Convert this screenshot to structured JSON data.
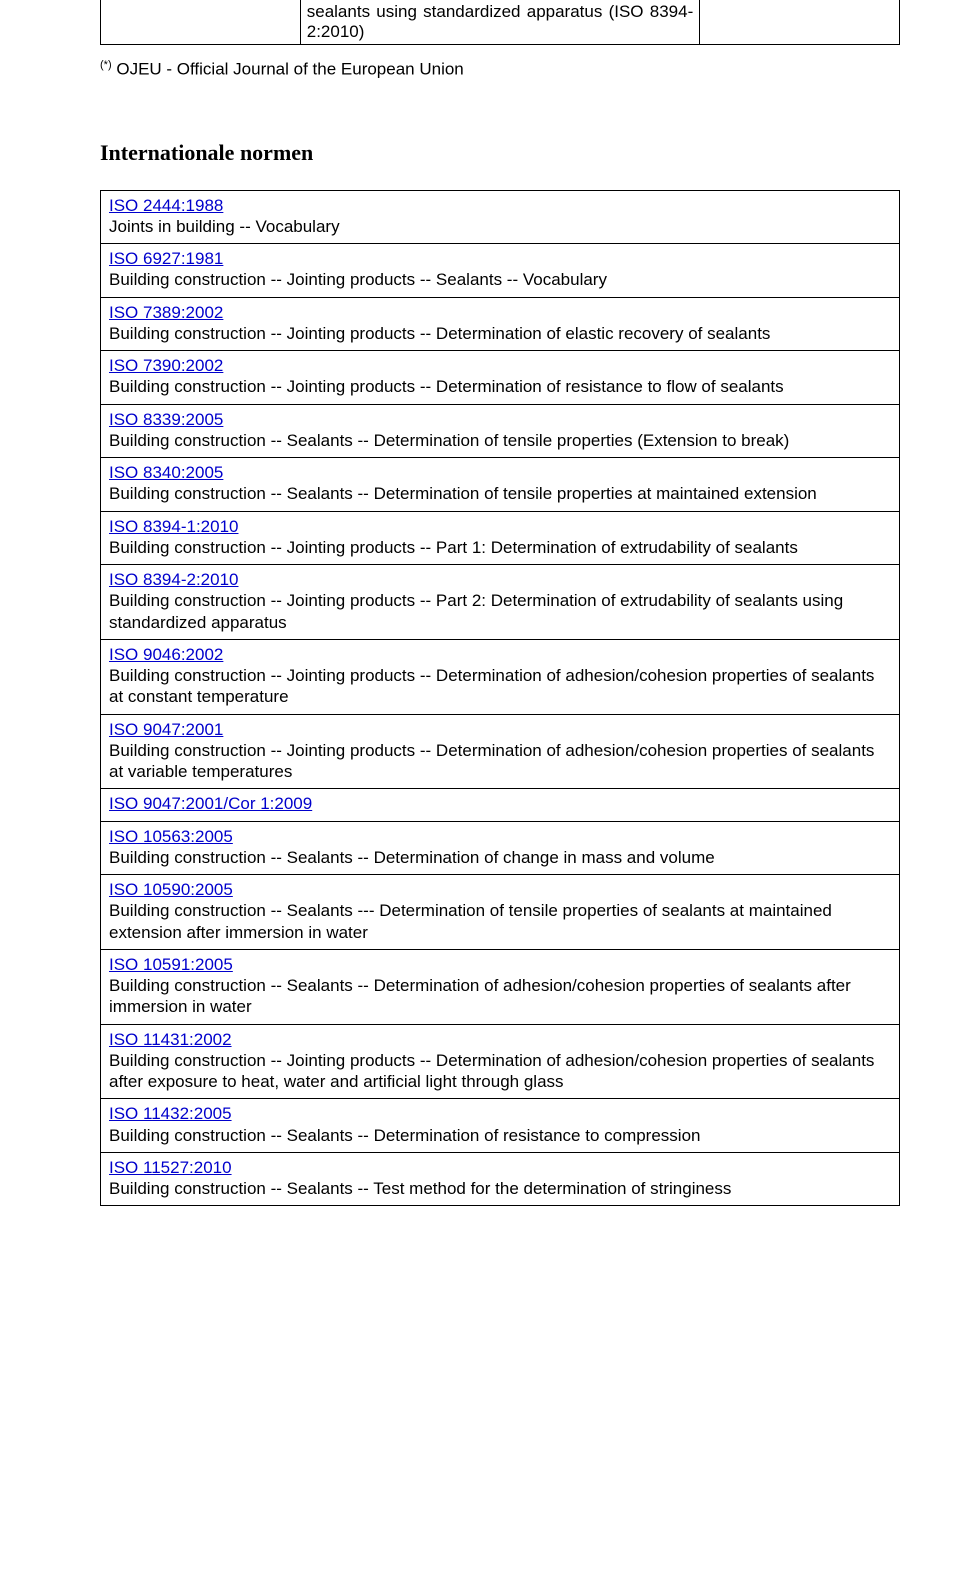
{
  "top_table": {
    "cell_text": "sealants using standardized apparatus (ISO 8394-2:2010)"
  },
  "footnote": {
    "marker": "(*)",
    "text": "OJEU - Official Journal of the European Union"
  },
  "heading": "Internationale normen",
  "standards": [
    {
      "code": "ISO 2444:1988",
      "desc": "Joints in building -- Vocabulary"
    },
    {
      "code": "ISO 6927:1981",
      "desc": "Building construction -- Jointing products -- Sealants -- Vocabulary"
    },
    {
      "code": "ISO 7389:2002",
      "desc": "Building construction -- Jointing products -- Determination of elastic recovery of sealants"
    },
    {
      "code": "ISO 7390:2002",
      "desc": "Building construction -- Jointing products -- Determination of resistance to flow of sealants"
    },
    {
      "code": "ISO 8339:2005",
      "desc": "Building construction -- Sealants -- Determination of tensile properties (Extension to break)"
    },
    {
      "code": "ISO 8340:2005",
      "desc": "Building construction -- Sealants -- Determination of tensile properties at maintained extension"
    },
    {
      "code": "ISO 8394-1:2010",
      "desc": "Building construction -- Jointing products -- Part 1: Determination of extrudability of sealants"
    },
    {
      "code": "ISO 8394-2:2010",
      "desc": "Building construction -- Jointing products -- Part 2: Determination of extrudability of sealants using standardized apparatus"
    },
    {
      "code": "ISO 9046:2002",
      "desc": "Building construction -- Jointing products -- Determination of adhesion/cohesion properties of sealants at constant temperature"
    },
    {
      "code": "ISO 9047:2001",
      "desc": "Building construction -- Jointing products -- Determination of adhesion/cohesion properties of sealants at variable temperatures"
    },
    {
      "code": "ISO 9047:2001/Cor 1:2009",
      "desc": ""
    },
    {
      "code": "ISO 10563:2005",
      "desc": "Building construction -- Sealants -- Determination of change in mass and volume"
    },
    {
      "code": "ISO 10590:2005",
      "desc": "Building construction -- Sealants --- Determination of tensile properties of sealants at maintained extension after immersion in water"
    },
    {
      "code": "ISO 10591:2005",
      "desc": "Building construction -- Sealants -- Determination of adhesion/cohesion properties of sealants after immersion in water"
    },
    {
      "code": "ISO 11431:2002",
      "desc": "Building construction -- Jointing products -- Determination of adhesion/cohesion properties of sealants after exposure to heat, water and artificial light through glass"
    },
    {
      "code": "ISO 11432:2005",
      "desc": "Building construction -- Sealants -- Determination of resistance to compression"
    },
    {
      "code": "ISO 11527:2010",
      "desc": "Building construction -- Sealants -- Test method for the determination of stringiness"
    }
  ]
}
